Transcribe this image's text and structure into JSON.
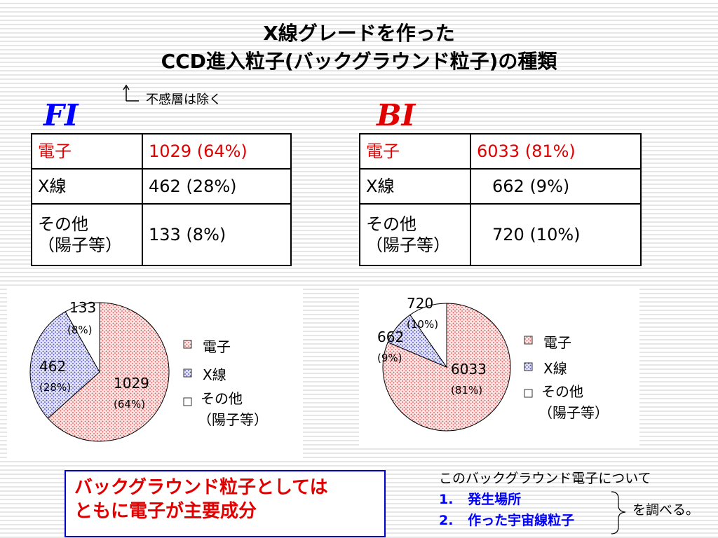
{
  "title": {
    "line1": "X線グレードを作った",
    "line2": "CCD進入粒子(バックグラウンド粒子)の種類"
  },
  "annotation": "不感層は除く",
  "fi": {
    "label": "FI",
    "table": [
      {
        "name": "電子",
        "value": "1029 (64%)"
      },
      {
        "name": "X線",
        "value": "462 (28%)"
      },
      {
        "name_line1": "その他",
        "name_line2": "（陽子等）",
        "value": "133 (8%)"
      }
    ]
  },
  "bi": {
    "label": "BI",
    "table": [
      {
        "name": "電子",
        "value": "6033 (81%)"
      },
      {
        "name": "X線",
        "value": "662 (9%)"
      },
      {
        "name_line1": "その他",
        "name_line2": "（陽子等）",
        "value": "720 (10%)"
      }
    ]
  },
  "chart_data": [
    {
      "type": "pie",
      "categories": [
        "電子",
        "X線",
        "その他（陽子等）"
      ],
      "values": [
        1029,
        462,
        133
      ],
      "value_labels": [
        "1029",
        "462",
        "133"
      ],
      "percent_labels": [
        "(64%)",
        "(28%)",
        "(8%)"
      ],
      "legend": [
        "電子",
        "X線",
        "その他",
        "（陽子等）"
      ],
      "legend_position": "right"
    },
    {
      "type": "pie",
      "categories": [
        "電子",
        "X線",
        "その他（陽子等）"
      ],
      "values": [
        6033,
        662,
        720
      ],
      "value_labels": [
        "6033",
        "662",
        "720"
      ],
      "percent_labels": [
        "(81%)",
        "(9%)",
        "(10%)"
      ],
      "legend": [
        "電子",
        "X線",
        "その他",
        "（陽子等）"
      ],
      "legend_position": "right"
    }
  ],
  "summary_box": {
    "line1": "バックグラウンド粒子としては",
    "line2": "ともに電子が主要成分"
  },
  "todo": {
    "heading": "このバックグラウンド電子について",
    "items": [
      {
        "num": "1.",
        "text": "発生場所"
      },
      {
        "num": "2.",
        "text": "作った宇宙線粒子"
      }
    ],
    "suffix": "を調べる。"
  },
  "colors": {
    "electron": "#e05050",
    "xray": "#4040c0",
    "other": "#ffffff"
  }
}
